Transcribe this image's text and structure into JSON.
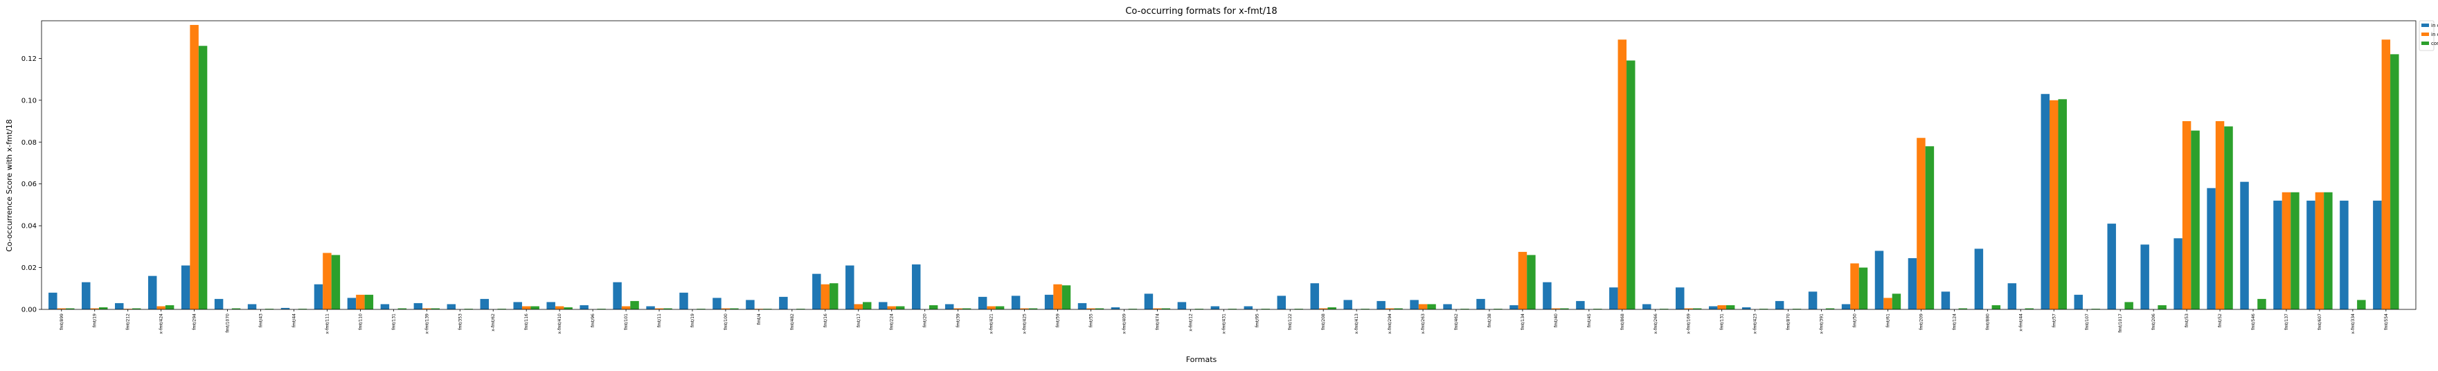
{
  "chart_data": {
    "type": "bar",
    "title": "Co-occurring formats for x-fmt/18",
    "xlabel": "Formats",
    "ylabel": "Co-occurrence Score with x-fmt/18",
    "ylim": [
      0,
      0.138
    ],
    "yticks": [
      0.0,
      0.02,
      0.04,
      0.06,
      0.08,
      0.1,
      0.12
    ],
    "ytick_labels": [
      "0.00",
      "0.02",
      "0.04",
      "0.06",
      "0.08",
      "0.10",
      "0.12"
    ],
    "grid": false,
    "legend_position": "outside-top-right",
    "colors": [
      "#1f77b4",
      "#ff7f0e",
      "#2ca02c"
    ],
    "categories": [
      "fmt/899",
      "fmt/19",
      "fmt/212",
      "x-fmt/424",
      "fmt/294",
      "fmt/1070",
      "fmt/43",
      "fmt/44",
      "x-fmt/111",
      "fmt/110",
      "fmt/131",
      "x-fmt/139",
      "fmt/353",
      "x-fmt/62",
      "fmt/116",
      "x-fmt/410",
      "fmt/96",
      "fmt/101",
      "fmt/11",
      "fmt/19",
      "fmt/100",
      "fmt/4",
      "fmt/482",
      "fmt/16",
      "fmt/17",
      "fmt/224",
      "fmt/20",
      "fmt/39",
      "x-fmt/421",
      "x-fmt/425",
      "fmt/59",
      "fmt/55",
      "x-fmt/409",
      "fmt/474",
      "x-fmt/12",
      "x-fmt/431",
      "fmt/95",
      "fmt/122",
      "fmt/208",
      "x-fmt/413",
      "x-fmt/294",
      "x-fmt/263",
      "fmt/462",
      "fmt/38",
      "fmt/134",
      "fmt/40",
      "fmt/45",
      "fmt/868",
      "x-fmt/266",
      "x-fmt/169",
      "fmt/131",
      "x-fmt/423",
      "fmt/870",
      "x-fmt/391",
      "fmt/50",
      "fmt/61",
      "fmt/209",
      "fmt/124",
      "fmt/880",
      "x-fmt/44",
      "fmt/57",
      "fmt/107",
      "fmt/1017",
      "fmt/206",
      "fmt/53",
      "fmt/52",
      "fmt/546",
      "fmt/137",
      "fmt/607",
      "x-fmt/334",
      "fmt/554"
    ],
    "series": [
      {
        "name": "in data-objects",
        "values": [
          0.008,
          0.013,
          0.003,
          0.016,
          0.021,
          0.005,
          0.0025,
          0.0007,
          0.012,
          0.0055,
          0.0025,
          0.003,
          0.0025,
          0.005,
          0.0035,
          0.0035,
          0.002,
          0.013,
          0.0015,
          0.008,
          0.0055,
          0.0045,
          0.006,
          0.017,
          0.021,
          0.0035,
          0.0215,
          0.0025,
          0.006,
          0.0065,
          0.007,
          0.003,
          0.001,
          0.0075,
          0.0035,
          0.0015,
          0.0015,
          0.0065,
          0.0125,
          0.0045,
          0.004,
          0.0045,
          0.0025,
          0.005,
          0.002,
          0.013,
          0.004,
          0.0105,
          0.0025,
          0.0105,
          0.0015,
          0.001,
          0.004,
          0.0085,
          0.0025,
          0.028,
          0.0245,
          0.0085,
          0.029,
          0.0125,
          0.103,
          0.007,
          0.041,
          0.031,
          0.034,
          0.058,
          0.061,
          0.052,
          0.052,
          0.052,
          0.052
        ]
      },
      {
        "name": "in directories",
        "values": [
          0.0005,
          0.0005,
          0.0003,
          0.0015,
          0.136,
          0,
          0,
          0,
          0.027,
          0.007,
          0,
          0.0005,
          0,
          0,
          0.0015,
          0.0015,
          0,
          0.0015,
          0.0005,
          0,
          0.0005,
          0.0003,
          0,
          0.012,
          0.0025,
          0.0015,
          0,
          0.0005,
          0.0015,
          0.0005,
          0.012,
          0.0005,
          0,
          0.0005,
          0,
          0,
          0,
          0,
          0.0005,
          0,
          0.0005,
          0.0025,
          0,
          0,
          0.0275,
          0.0005,
          0,
          0.129,
          0,
          0.0005,
          0.002,
          0,
          0,
          0,
          0.022,
          0.0055,
          0.082,
          0,
          0,
          0,
          0.1,
          0,
          0,
          0,
          0.09,
          0.09,
          0,
          0.056,
          0.056,
          0,
          0.129
        ]
      },
      {
        "name": "combined",
        "values": [
          0.0005,
          0.001,
          0.0005,
          0.002,
          0.126,
          0.0005,
          0.0003,
          0.0003,
          0.026,
          0.007,
          0.0005,
          0.0005,
          0.0003,
          0.0003,
          0.0015,
          0.001,
          0.0003,
          0.004,
          0.0005,
          0.0003,
          0.0005,
          0.0003,
          0.0003,
          0.0125,
          0.0035,
          0.0015,
          0.002,
          0.0005,
          0.0015,
          0.0005,
          0.0115,
          0.0005,
          0.0003,
          0.0005,
          0.0003,
          0.0003,
          0.0003,
          0.0003,
          0.001,
          0.0003,
          0.0005,
          0.0025,
          0.0003,
          0.0003,
          0.026,
          0.0005,
          0.0003,
          0.119,
          0.0003,
          0.0005,
          0.002,
          0.0003,
          0.0003,
          0.0005,
          0.02,
          0.0075,
          0.078,
          0.0005,
          0.002,
          0.0005,
          0.1005,
          0.0003,
          0.0035,
          0.002,
          0.0855,
          0.0875,
          0.005,
          0.056,
          0.056,
          0.0045,
          0.122
        ]
      }
    ]
  }
}
